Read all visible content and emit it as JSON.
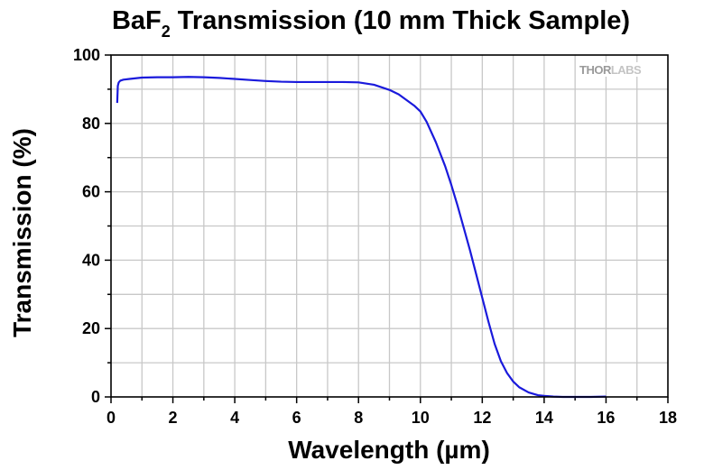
{
  "chart_data": {
    "type": "line",
    "title_parts": {
      "main": "BaF",
      "subscript": "2",
      "rest": " Transmission (10 mm Thick Sample)"
    },
    "title": "BaF2 Transmission (10 mm Thick Sample)",
    "xlabel": "Wavelength (µm)",
    "ylabel": "Transmission (%)",
    "xlim": [
      0,
      18
    ],
    "ylim": [
      0,
      100
    ],
    "xticks": [
      0,
      2,
      4,
      6,
      8,
      10,
      12,
      14,
      16,
      18
    ],
    "yticks": [
      0,
      20,
      40,
      60,
      80,
      100
    ],
    "grid": true,
    "line_color": "#1a1adc",
    "series": [
      {
        "x": [
          0.2,
          0.22,
          0.25,
          0.3,
          0.4,
          0.6,
          1.0,
          1.5,
          2.0,
          2.5,
          3.0,
          3.5,
          4.0,
          4.5,
          5.0,
          5.5,
          6.0,
          6.5,
          7.0,
          7.5,
          8.0,
          8.5,
          9.0,
          9.3,
          9.6,
          9.8,
          10.0,
          10.2,
          10.5,
          10.8,
          11.0,
          11.2,
          11.4,
          11.6,
          11.8,
          12.0,
          12.2,
          12.4,
          12.6,
          12.8,
          13.0,
          13.2,
          13.5,
          13.8,
          14.0,
          14.3,
          14.6,
          15.0,
          15.5,
          16.0
        ],
        "y": [
          86,
          91,
          92,
          92.5,
          92.8,
          93,
          93.4,
          93.5,
          93.5,
          93.6,
          93.5,
          93.3,
          93.0,
          92.7,
          92.4,
          92.2,
          92.1,
          92.1,
          92.1,
          92.1,
          92.0,
          91.3,
          89.8,
          88.5,
          86.5,
          85.2,
          83.5,
          80.5,
          74.5,
          67.5,
          62,
          56,
          49.5,
          43,
          36,
          29,
          22,
          15.5,
          10.5,
          7,
          4.5,
          2.8,
          1.3,
          0.5,
          0.3,
          0.1,
          0,
          0,
          0,
          0.1
        ]
      }
    ]
  },
  "logo": {
    "thor": "THOR",
    "labs": "LABS"
  }
}
